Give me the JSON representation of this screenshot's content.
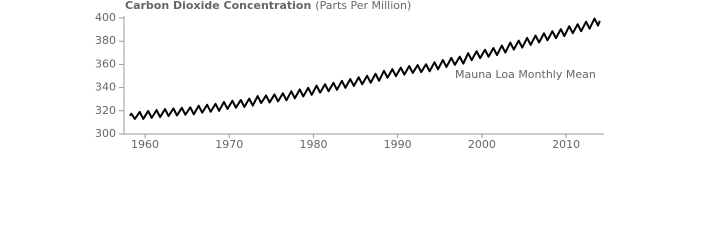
{
  "chart_data": {
    "type": "line",
    "title": "Carbon Dioxide Concentration",
    "y_label": "(Parts Per Million)",
    "x": [
      1958.2,
      1958.37,
      1958.79,
      1959.37,
      1959.79,
      1960.37,
      1960.79,
      1961.37,
      1961.79,
      1962.37,
      1962.79,
      1963.37,
      1963.79,
      1964.37,
      1964.79,
      1965.37,
      1965.79,
      1966.37,
      1966.79,
      1967.37,
      1967.79,
      1968.37,
      1968.79,
      1969.37,
      1969.79,
      1970.37,
      1970.79,
      1971.37,
      1971.79,
      1972.37,
      1972.79,
      1973.37,
      1973.79,
      1974.37,
      1974.79,
      1975.37,
      1975.79,
      1976.37,
      1976.79,
      1977.37,
      1977.79,
      1978.37,
      1978.79,
      1979.37,
      1979.79,
      1980.37,
      1980.79,
      1981.37,
      1981.79,
      1982.37,
      1982.79,
      1983.37,
      1983.79,
      1984.37,
      1984.79,
      1985.37,
      1985.79,
      1986.37,
      1986.79,
      1987.37,
      1987.79,
      1988.37,
      1988.79,
      1989.37,
      1989.79,
      1990.37,
      1990.79,
      1991.37,
      1991.79,
      1992.37,
      1992.79,
      1993.37,
      1993.79,
      1994.37,
      1994.79,
      1995.37,
      1995.79,
      1996.37,
      1996.79,
      1997.37,
      1997.79,
      1998.37,
      1998.79,
      1999.37,
      1999.79,
      2000.37,
      2000.79,
      2001.37,
      2001.79,
      2002.37,
      2002.79,
      2003.37,
      2003.79,
      2004.37,
      2004.79,
      2005.37,
      2005.79,
      2006.37,
      2006.79,
      2007.37,
      2007.79,
      2008.37,
      2008.79,
      2009.37,
      2009.79,
      2010.37,
      2010.79,
      2011.37,
      2011.79,
      2012.37,
      2012.79,
      2013.37,
      2013.79,
      2014.0
    ],
    "series": [
      {
        "name": "Mauna Loa Monthly Mean",
        "color": "#000000",
        "values": [
          315.7,
          317.5,
          313.0,
          319.0,
          313.0,
          319.9,
          313.9,
          320.6,
          314.6,
          321.5,
          315.5,
          322.0,
          316.0,
          322.6,
          316.6,
          323.0,
          317.0,
          324.4,
          318.4,
          325.2,
          319.2,
          326.0,
          320.0,
          327.6,
          321.6,
          328.7,
          322.7,
          329.3,
          323.3,
          330.5,
          324.5,
          332.7,
          326.7,
          333.2,
          327.2,
          334.1,
          328.1,
          335.1,
          329.1,
          336.8,
          330.8,
          338.4,
          332.4,
          339.8,
          333.8,
          341.7,
          335.7,
          342.9,
          336.9,
          344.1,
          338.1,
          345.8,
          339.8,
          347.4,
          341.4,
          348.9,
          342.9,
          350.2,
          344.2,
          351.9,
          345.9,
          354.5,
          348.5,
          355.9,
          349.9,
          357.2,
          351.2,
          358.6,
          352.6,
          359.4,
          353.4,
          360.1,
          354.1,
          361.8,
          355.8,
          363.8,
          357.8,
          365.6,
          359.6,
          366.7,
          360.7,
          369.7,
          363.7,
          371.4,
          365.4,
          372.6,
          366.6,
          374.1,
          368.1,
          376.2,
          370.2,
          378.8,
          372.8,
          380.5,
          374.5,
          382.8,
          376.8,
          384.9,
          378.9,
          386.8,
          380.8,
          388.6,
          382.6,
          390.4,
          384.4,
          392.9,
          386.9,
          394.6,
          388.6,
          396.8,
          390.8,
          399.5,
          393.5,
          397.5
        ]
      }
    ],
    "xlim": [
      1957.5,
      2014.5
    ],
    "xticks": [
      1960,
      1970,
      1980,
      1990,
      2000,
      2010
    ],
    "ylim": [
      300,
      400
    ],
    "yticks": [
      300,
      320,
      340,
      360,
      380,
      400
    ],
    "grid": false
  }
}
